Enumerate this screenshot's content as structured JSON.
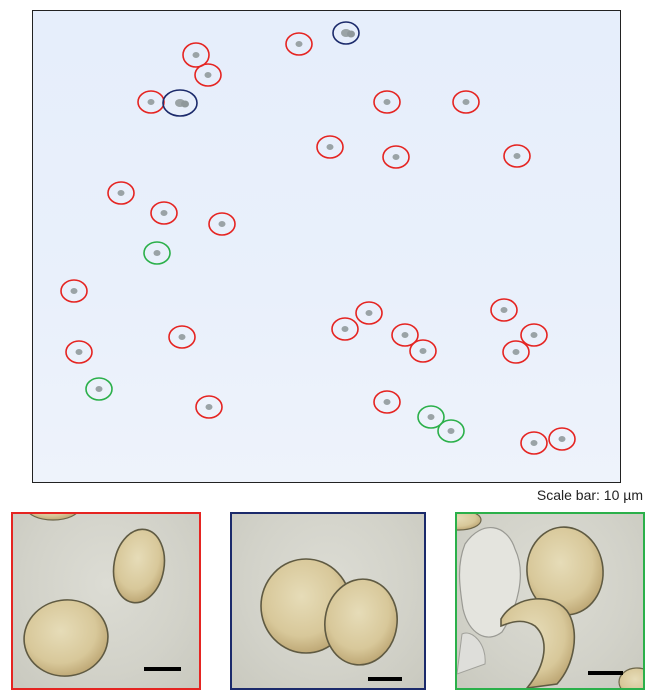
{
  "colors": {
    "red_circle": "#e52421",
    "blue_circle": "#1b2a6b",
    "green_circle": "#2bb04a",
    "background": "#e8eefa"
  },
  "scale_bar": {
    "text": "Scale bar: 10 µm"
  },
  "overview": {
    "circles": [
      {
        "type": "red"
      },
      {
        "type": "blue"
      },
      {
        "type": "red"
      },
      {
        "type": "red"
      },
      {
        "type": "red"
      },
      {
        "type": "blue"
      },
      {
        "type": "red"
      },
      {
        "type": "red"
      },
      {
        "type": "red"
      },
      {
        "type": "red"
      },
      {
        "type": "red"
      },
      {
        "type": "red"
      },
      {
        "type": "red"
      },
      {
        "type": "red"
      },
      {
        "type": "green"
      },
      {
        "type": "red"
      },
      {
        "type": "red"
      },
      {
        "type": "red"
      },
      {
        "type": "red"
      },
      {
        "type": "red"
      },
      {
        "type": "red"
      },
      {
        "type": "red"
      },
      {
        "type": "red"
      },
      {
        "type": "red"
      },
      {
        "type": "red"
      },
      {
        "type": "green"
      },
      {
        "type": "red"
      },
      {
        "type": "red"
      },
      {
        "type": "green"
      },
      {
        "type": "green"
      },
      {
        "type": "red"
      },
      {
        "type": "red"
      }
    ]
  },
  "panels": [
    {
      "type": "red",
      "border_color": "#e52421"
    },
    {
      "type": "blue",
      "border_color": "#1b2a6b"
    },
    {
      "type": "green",
      "border_color": "#2bb04a"
    }
  ]
}
